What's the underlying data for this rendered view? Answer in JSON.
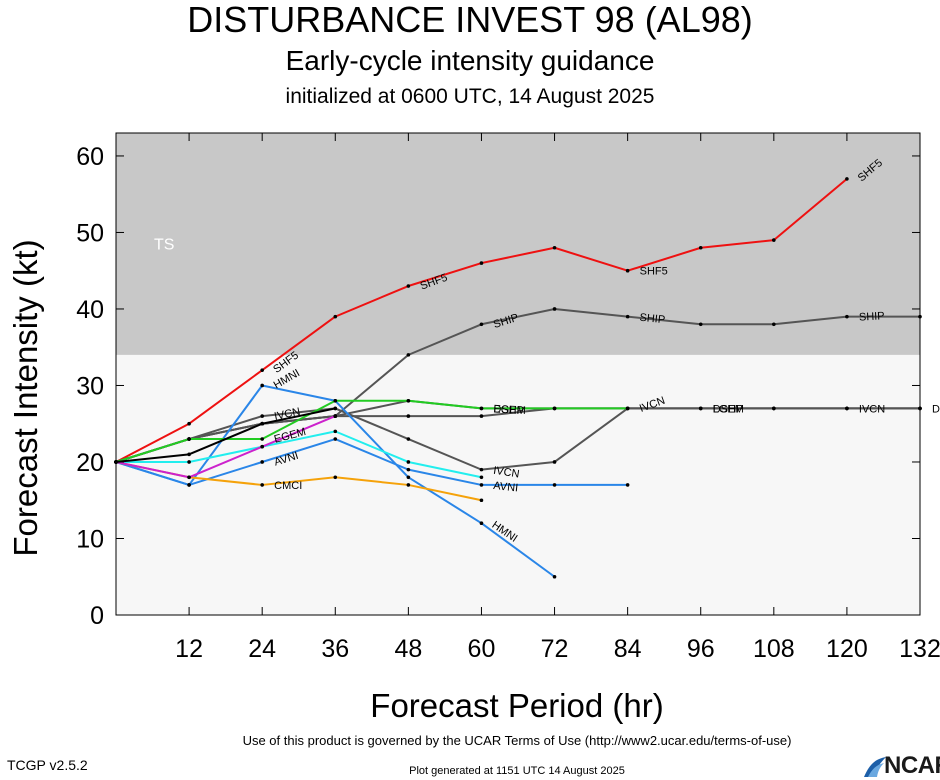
{
  "title": "DISTURBANCE INVEST 98 (AL98)",
  "subtitle": "Early-cycle intensity guidance",
  "init_line": "initialized at 0600 UTC, 14 August 2025",
  "footer": {
    "terms": "Use of this product is governed by the UCAR Terms of Use (http://www2.ucar.edu/terms-of-use)",
    "version": "TCGP v2.5.2",
    "generated": "Plot generated at 1151 UTC   14 August 2025",
    "logo_text": "NCAR"
  },
  "colors": {
    "ts_band": "#c8c8c8",
    "lower_band": "#f7f7f7",
    "SHF5": "#ee1111",
    "SHIP": "#555555",
    "DSHP": "#555555",
    "LGEM": "#555555",
    "IVCN": "#555555",
    "HMNI": "#2a86e8",
    "AVNI": "#2a86e8",
    "EGEM": "#22cc22",
    "CMCI": "#f5a20a",
    "cyan": "#22eeee",
    "magenta": "#cc22cc",
    "black": "#000000"
  },
  "chart_data": {
    "type": "line",
    "title": "DISTURBANCE INVEST 98 (AL98)",
    "xlabel": "Forecast Period (hr)",
    "ylabel": "Forecast Intensity (kt)",
    "xlim": [
      0,
      132
    ],
    "ylim": [
      0,
      63
    ],
    "xticks": [
      12,
      24,
      36,
      48,
      60,
      72,
      84,
      96,
      108,
      120,
      132
    ],
    "yticks": [
      0,
      10,
      20,
      30,
      40,
      50,
      60
    ],
    "bands": [
      {
        "label": "TS",
        "from": 34,
        "to": 63
      }
    ],
    "series": [
      {
        "name": "SHF5",
        "color": "#ee1111",
        "labels_at": [
          24,
          48,
          84,
          120
        ],
        "points": [
          [
            0,
            20
          ],
          [
            12,
            25
          ],
          [
            24,
            32
          ],
          [
            36,
            39
          ],
          [
            48,
            43
          ],
          [
            60,
            46
          ],
          [
            72,
            48
          ],
          [
            84,
            45
          ],
          [
            96,
            48
          ],
          [
            108,
            49
          ],
          [
            120,
            57
          ]
        ]
      },
      {
        "name": "SHIP",
        "color": "#555555",
        "labels_at": [
          60,
          84,
          120
        ],
        "points": [
          [
            0,
            20
          ],
          [
            12,
            23
          ],
          [
            24,
            25
          ],
          [
            36,
            26
          ],
          [
            48,
            34
          ],
          [
            60,
            38
          ],
          [
            72,
            40
          ],
          [
            84,
            39
          ],
          [
            96,
            38
          ],
          [
            108,
            38
          ],
          [
            120,
            39
          ],
          [
            132,
            39
          ]
        ]
      },
      {
        "name": "DSHP",
        "color": "#555555",
        "labels_at": [
          60,
          96,
          132
        ],
        "points": [
          [
            0,
            20
          ],
          [
            12,
            23
          ],
          [
            24,
            25
          ],
          [
            36,
            26
          ],
          [
            48,
            28
          ],
          [
            60,
            27
          ],
          [
            72,
            27
          ],
          [
            84,
            27
          ],
          [
            96,
            27
          ],
          [
            108,
            27
          ],
          [
            120,
            27
          ],
          [
            132,
            27
          ]
        ]
      },
      {
        "name": "LGEM",
        "color": "#555555",
        "labels_at": [
          96
        ],
        "points": [
          [
            0,
            20
          ],
          [
            12,
            23
          ],
          [
            24,
            25
          ],
          [
            36,
            26
          ],
          [
            48,
            26
          ],
          [
            60,
            26
          ],
          [
            72,
            27
          ],
          [
            84,
            27
          ],
          [
            96,
            27
          ],
          [
            108,
            27
          ],
          [
            120,
            27
          ],
          [
            132,
            27
          ]
        ]
      },
      {
        "name": "IVCN",
        "color": "#555555",
        "labels_at": [
          24,
          60,
          84,
          120
        ],
        "points": [
          [
            0,
            20
          ],
          [
            12,
            23
          ],
          [
            24,
            26
          ],
          [
            36,
            27
          ],
          [
            48,
            23
          ],
          [
            60,
            19
          ],
          [
            72,
            20
          ],
          [
            84,
            27
          ],
          [
            96,
            27
          ],
          [
            108,
            27
          ],
          [
            120,
            27
          ],
          [
            132,
            27
          ]
        ]
      },
      {
        "name": "HMNI",
        "color": "#2a86e8",
        "labels_at": [
          24,
          60
        ],
        "points": [
          [
            0,
            20
          ],
          [
            12,
            17
          ],
          [
            24,
            30
          ],
          [
            36,
            28
          ],
          [
            48,
            18
          ],
          [
            60,
            12
          ],
          [
            72,
            5
          ]
        ]
      },
      {
        "name": "AVNI",
        "color": "#2a86e8",
        "labels_at": [
          24,
          60
        ],
        "points": [
          [
            0,
            20
          ],
          [
            12,
            17
          ],
          [
            24,
            20
          ],
          [
            36,
            23
          ],
          [
            48,
            19
          ],
          [
            60,
            17
          ],
          [
            72,
            17
          ],
          [
            84,
            17
          ]
        ]
      },
      {
        "name": "EGEM",
        "color": "#22cc22",
        "labels_at": [
          24,
          60
        ],
        "points": [
          [
            0,
            20
          ],
          [
            12,
            23
          ],
          [
            24,
            23
          ],
          [
            36,
            28
          ],
          [
            48,
            28
          ],
          [
            60,
            27
          ],
          [
            72,
            27
          ],
          [
            84,
            27
          ]
        ]
      },
      {
        "name": "CMCI",
        "color": "#f5a20a",
        "labels_at": [
          24
        ],
        "points": [
          [
            0,
            20
          ],
          [
            12,
            18
          ],
          [
            24,
            17
          ],
          [
            36,
            18
          ],
          [
            48,
            17
          ],
          [
            60,
            15
          ]
        ]
      },
      {
        "name": "",
        "color": "#22eeee",
        "labels_at": [],
        "points": [
          [
            0,
            20
          ],
          [
            12,
            20
          ],
          [
            24,
            22
          ],
          [
            36,
            24
          ],
          [
            48,
            20
          ],
          [
            60,
            18
          ]
        ]
      },
      {
        "name": "",
        "color": "#cc22cc",
        "labels_at": [],
        "points": [
          [
            0,
            20
          ],
          [
            12,
            18
          ],
          [
            24,
            22
          ],
          [
            36,
            26
          ]
        ]
      },
      {
        "name": "",
        "color": "#000000",
        "labels_at": [],
        "points": [
          [
            0,
            20
          ],
          [
            12,
            21
          ],
          [
            24,
            25
          ],
          [
            36,
            27
          ]
        ]
      }
    ],
    "grid": false,
    "legend": "none"
  }
}
